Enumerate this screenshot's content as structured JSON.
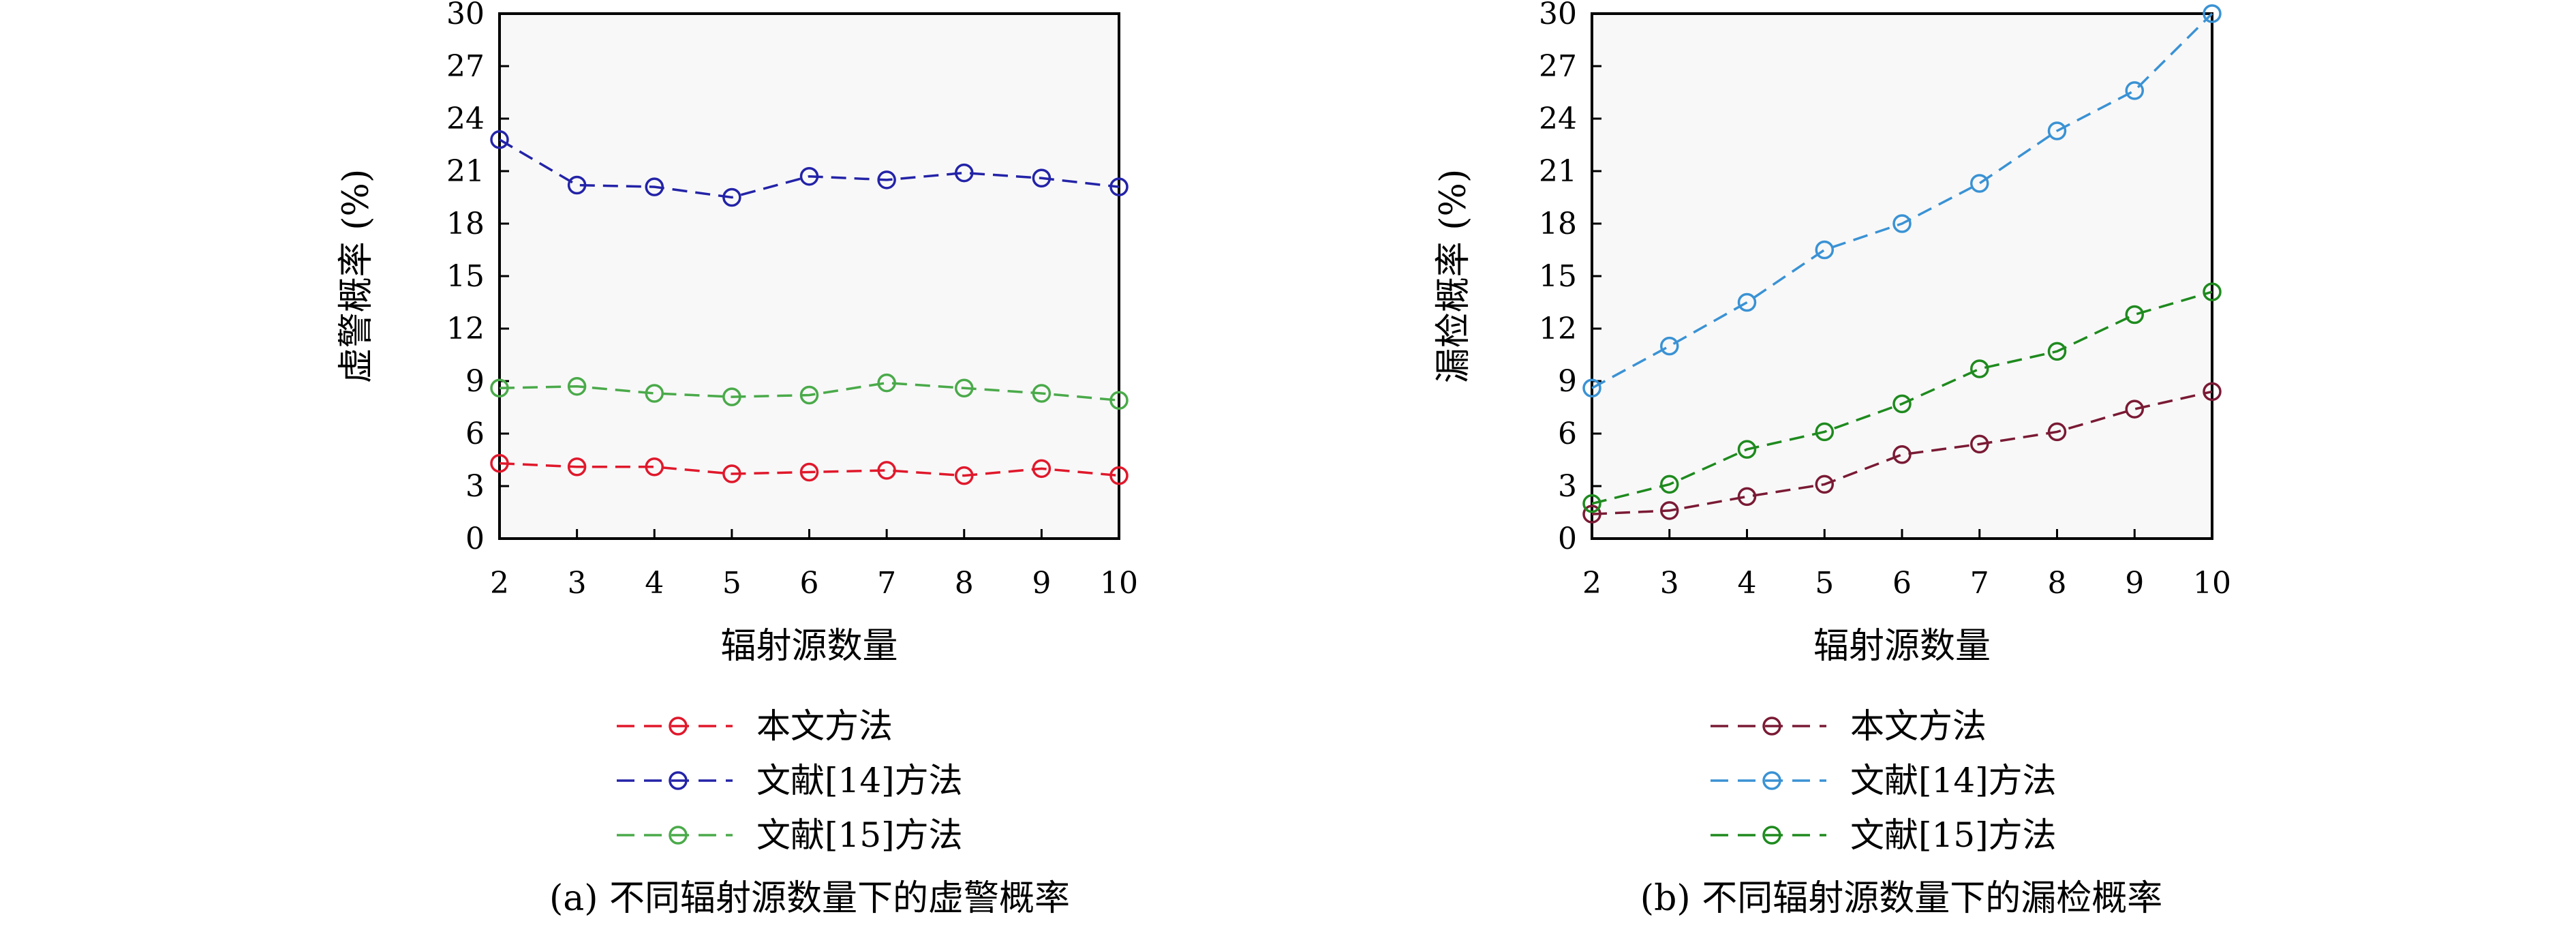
{
  "chart_data": [
    {
      "type": "line",
      "caption": "(a) 不同辐射源数量下的虚警概率",
      "xlabel": "辐射源数量",
      "ylabel": "虚警概率 (%)",
      "xlim": [
        2,
        10
      ],
      "ylim": [
        0,
        30
      ],
      "x": [
        2,
        3,
        4,
        5,
        6,
        7,
        8,
        9,
        10
      ],
      "xticks": [
        "2",
        "3",
        "4",
        "5",
        "6",
        "7",
        "8",
        "9",
        "10"
      ],
      "yticks": [
        "0",
        "3",
        "6",
        "9",
        "12",
        "15",
        "18",
        "21",
        "24",
        "27",
        "30"
      ],
      "grid": false,
      "legend_position": "below",
      "series": [
        {
          "name": "本文方法",
          "color": "#e0182b",
          "marker": "circle",
          "line": "dashed",
          "values": [
            4.3,
            4.1,
            4.1,
            3.7,
            3.8,
            3.9,
            3.6,
            4.0,
            3.6
          ]
        },
        {
          "name": "文献[14]方法",
          "color": "#2323a8",
          "marker": "circle",
          "line": "dashed",
          "values": [
            22.8,
            20.2,
            20.1,
            19.5,
            20.7,
            20.5,
            20.9,
            20.6,
            20.1
          ]
        },
        {
          "name": "文献[15]方法",
          "color": "#4aaa4a",
          "marker": "circle",
          "line": "dashed",
          "values": [
            8.6,
            8.7,
            8.3,
            8.1,
            8.2,
            8.9,
            8.6,
            8.3,
            7.9
          ]
        }
      ]
    },
    {
      "type": "line",
      "caption": "(b) 不同辐射源数量下的漏检概率",
      "xlabel": "辐射源数量",
      "ylabel": "漏检概率 (%)",
      "xlim": [
        2,
        10
      ],
      "ylim": [
        0,
        30
      ],
      "x": [
        2,
        3,
        4,
        5,
        6,
        7,
        8,
        9,
        10
      ],
      "xticks": [
        "2",
        "3",
        "4",
        "5",
        "6",
        "7",
        "8",
        "9",
        "10"
      ],
      "yticks": [
        "0",
        "3",
        "6",
        "9",
        "12",
        "15",
        "18",
        "21",
        "24",
        "27",
        "30"
      ],
      "grid": false,
      "legend_position": "below",
      "series": [
        {
          "name": "本文方法",
          "color": "#7a1a34",
          "marker": "circle",
          "line": "dashed",
          "values": [
            1.4,
            1.6,
            2.4,
            3.1,
            4.8,
            5.4,
            6.1,
            7.4,
            8.4
          ]
        },
        {
          "name": "文献[14]方法",
          "color": "#3a92d4",
          "marker": "circle",
          "line": "dashed",
          "values": [
            8.6,
            11.0,
            13.5,
            16.5,
            18.0,
            20.3,
            23.3,
            25.6,
            30.0
          ]
        },
        {
          "name": "文献[15]方法",
          "color": "#1e8a1e",
          "marker": "circle",
          "line": "dashed",
          "values": [
            2.0,
            3.1,
            5.1,
            6.1,
            7.7,
            9.7,
            10.7,
            12.8,
            14.1
          ]
        }
      ]
    }
  ]
}
